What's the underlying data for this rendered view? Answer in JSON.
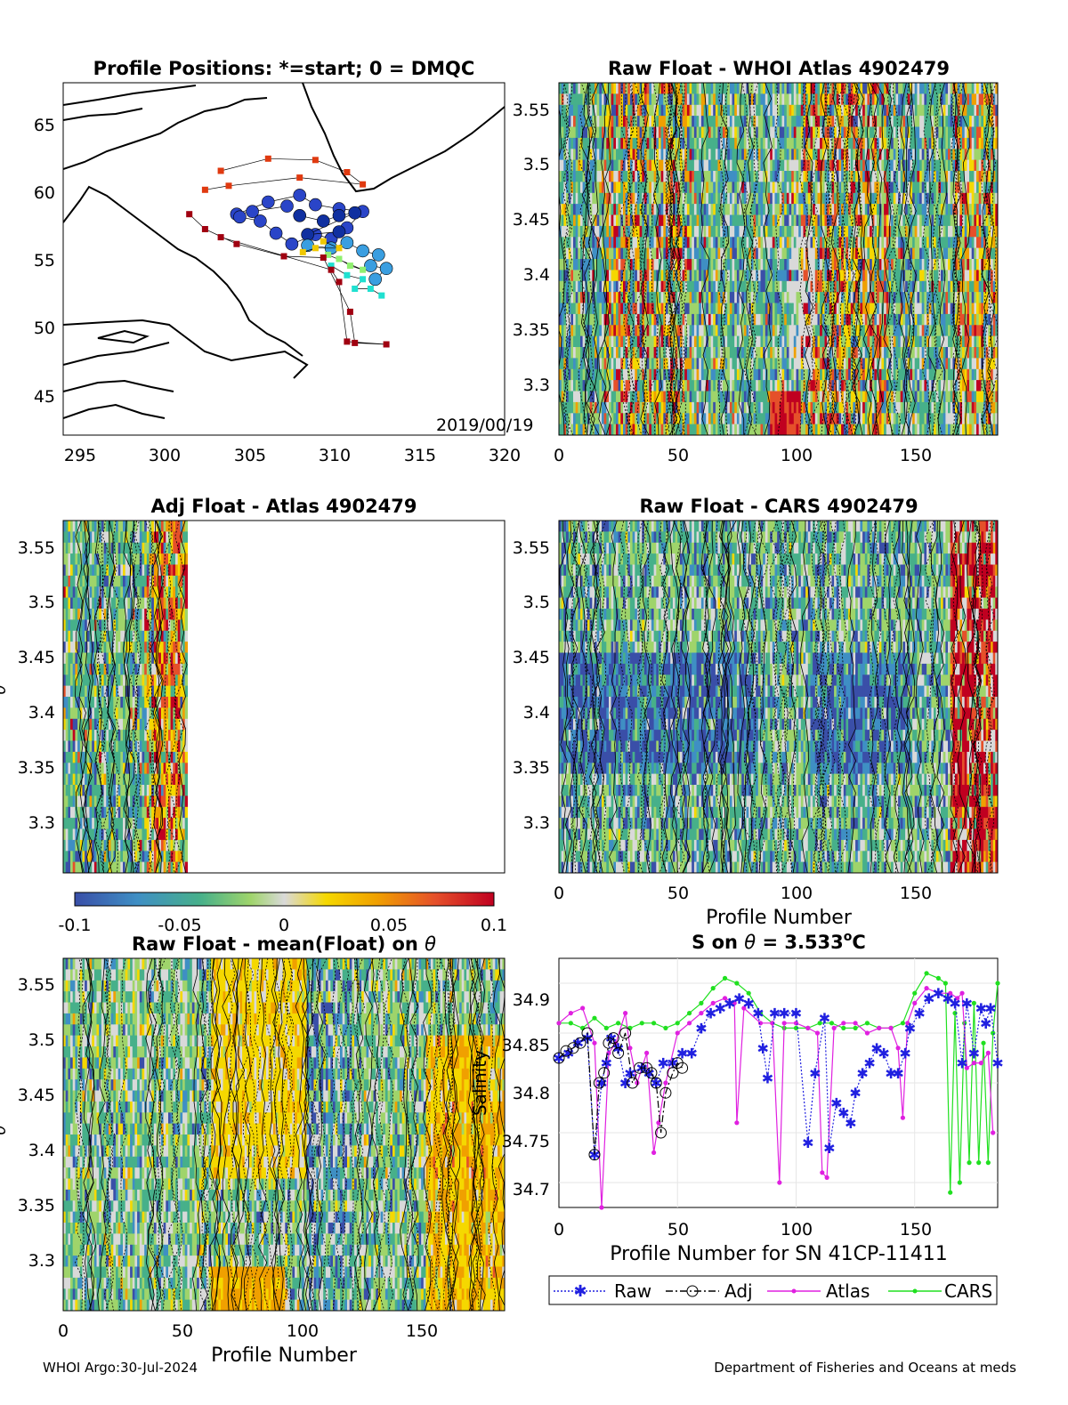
{
  "footer": {
    "left": "WHOI Argo:30-Jul-2024",
    "right": "Department of Fisheries and Oceans at meds"
  },
  "panels": {
    "map": {
      "title": "Profile Positions: *=start; 0 = DMQC",
      "date_label": "2019/00/19",
      "xticks": [
        "295",
        "300",
        "305",
        "310",
        "315",
        "320"
      ],
      "yticks": [
        "45",
        "50",
        "55",
        "60",
        "65"
      ]
    },
    "whoi": {
      "title": "Raw Float - WHOI Atlas  4902479",
      "xticks": [
        "0",
        "50",
        "100",
        "150"
      ],
      "yticks": [
        "3.3",
        "3.35",
        "3.4",
        "3.45",
        "3.5",
        "3.55"
      ]
    },
    "adj": {
      "title": "Adj Float - Atlas  4902479",
      "ylabel": "θ",
      "yticks": [
        "3.3",
        "3.35",
        "3.4",
        "3.45",
        "3.5",
        "3.55"
      ]
    },
    "cars": {
      "title": "Raw Float - CARS  4902479",
      "xlabel": "Profile Number",
      "xticks": [
        "0",
        "50",
        "100",
        "150"
      ],
      "yticks": [
        "3.3",
        "3.35",
        "3.4",
        "3.45",
        "3.5",
        "3.55"
      ]
    },
    "colorbar": {
      "ticks": [
        "-0.1",
        "-0.05",
        "0",
        "0.05",
        "0.1"
      ],
      "colors": [
        "#3a4fa8",
        "#3f8fc4",
        "#47b08a",
        "#9fd46b",
        "#d9d9d9",
        "#f5d800",
        "#f0a000",
        "#e5502a",
        "#c00020"
      ]
    },
    "mean": {
      "title_prefix": "Raw Float - mean(Float) on ",
      "title_sym": "θ",
      "ylabel": "θ",
      "xlabel": "Profile Number",
      "xticks": [
        "0",
        "50",
        "100",
        "150"
      ],
      "yticks": [
        "3.3",
        "3.35",
        "3.4",
        "3.45",
        "3.5",
        "3.55"
      ]
    },
    "sal": {
      "title_prefix": "S on ",
      "title_sym": "θ",
      "title_mid": " = 3.533",
      "title_sup": "o",
      "title_suffix": "C",
      "ylabel": "Salinity",
      "xlabel": "Profile Number for SN 41CP-11411",
      "xticks": [
        "0",
        "50",
        "100",
        "150"
      ],
      "yticks": [
        "34.7",
        "34.75",
        "34.8",
        "34.85",
        "34.9"
      ],
      "legend": [
        "Raw",
        "Adj",
        "Atlas",
        "CARS"
      ]
    }
  },
  "chart_data": [
    {
      "type": "scatter",
      "title": "Profile Positions: *=start; 0 = DMQC",
      "xlim": [
        293,
        321
      ],
      "ylim": [
        42,
        68
      ],
      "annotation": "2019/00/19",
      "series": [
        {
          "values": [
            [
              307.2,
              58.9
            ],
            [
              305,
              58.5
            ],
            [
              304,
              58.3
            ],
            [
              306,
              59.2
            ],
            [
              308,
              59.7
            ],
            [
              309,
              59
            ],
            [
              310.5,
              58.7
            ],
            [
              312,
              58.5
            ],
            [
              311,
              57.3
            ],
            [
              310,
              56.5
            ],
            [
              309,
              56.8
            ],
            [
              307.5,
              56.1
            ],
            [
              306.5,
              56.9
            ],
            [
              305.5,
              57.8
            ],
            [
              304.2,
              58.1
            ]
          ]
        },
        {
          "values": [
            [
              308,
              58.2
            ],
            [
              309.5,
              57.8
            ],
            [
              310.5,
              58.2
            ],
            [
              311.5,
              58.4
            ],
            [
              308.5,
              56.8
            ],
            [
              310.5,
              57
            ]
          ]
        },
        {
          "values": [
            [
              308.5,
              56
            ],
            [
              310,
              55.8
            ],
            [
              311,
              56.2
            ],
            [
              312,
              55.6
            ],
            [
              313,
              55.3
            ],
            [
              312.5,
              54.5
            ],
            [
              313.5,
              54.3
            ],
            [
              312.8,
              53.5
            ]
          ]
        },
        {
          "values": [
            [
              310,
              54.5
            ],
            [
              311,
              53.8
            ],
            [
              312,
              53.5
            ],
            [
              311.5,
              52.8
            ],
            [
              312.5,
              52.8
            ],
            [
              313.2,
              52.3
            ]
          ]
        },
        {
          "values": [
            [
              310.5,
              55
            ],
            [
              311.2,
              54.5
            ],
            [
              312,
              54.2
            ],
            [
              309.8,
              55.3
            ]
          ]
        },
        {
          "values": [
            [
              308.2,
              55.5
            ],
            [
              309,
              55.8
            ],
            [
              310.5,
              55.8
            ],
            [
              309.5,
              56.3
            ]
          ]
        },
        {
          "values": [
            [
              303,
              61.5
            ],
            [
              306,
              62.4
            ],
            [
              309,
              62.3
            ],
            [
              311,
              61.4
            ],
            [
              312,
              60.5
            ],
            [
              308,
              61
            ],
            [
              303.5,
              60.4
            ],
            [
              302,
              60.1
            ]
          ]
        },
        {
          "values": [
            [
              301,
              58.3
            ],
            [
              302,
              57.2
            ],
            [
              304,
              56.1
            ],
            [
              307,
              55.2
            ],
            [
              309.5,
              55.1
            ],
            [
              311.2,
              51.1
            ],
            [
              311.5,
              48.8
            ],
            [
              313.5,
              48.7
            ],
            [
              311,
              48.9
            ],
            [
              310.5,
              53.3
            ],
            [
              310,
              54.2
            ],
            [
              303,
              56.6
            ]
          ]
        }
      ]
    },
    {
      "type": "line",
      "title": "S on θ = 3.533°C",
      "xlabel": "Profile Number for SN 41CP-11411",
      "ylabel": "Salinity",
      "xlim": [
        0,
        185
      ],
      "ylim": [
        34.675,
        34.925
      ],
      "series": [
        {
          "name": "Raw",
          "values": [
            [
              0,
              34.825
            ],
            [
              4,
              34.83
            ],
            [
              8,
              34.84
            ],
            [
              12,
              34.845
            ],
            [
              15,
              34.728
            ],
            [
              18,
              34.8
            ],
            [
              20,
              34.82
            ],
            [
              22,
              34.845
            ],
            [
              25,
              34.835
            ],
            [
              28,
              34.8
            ],
            [
              30,
              34.81
            ],
            [
              35,
              34.815
            ],
            [
              38,
              34.81
            ],
            [
              41,
              34.8
            ],
            [
              44,
              34.82
            ],
            [
              48,
              34.82
            ],
            [
              52,
              34.83
            ],
            [
              56,
              34.83
            ],
            [
              60,
              34.855
            ],
            [
              64,
              34.87
            ],
            [
              68,
              34.875
            ],
            [
              72,
              34.88
            ],
            [
              76,
              34.885
            ],
            [
              80,
              34.88
            ],
            [
              84,
              34.87
            ],
            [
              86,
              34.835
            ],
            [
              88,
              34.805
            ],
            [
              91,
              34.87
            ],
            [
              95,
              34.87
            ],
            [
              100,
              34.87
            ],
            [
              105,
              34.74
            ],
            [
              108,
              34.81
            ],
            [
              112,
              34.865
            ],
            [
              114,
              34.735
            ],
            [
              117,
              34.78
            ],
            [
              120,
              34.77
            ],
            [
              123,
              34.76
            ],
            [
              125,
              34.79
            ],
            [
              128,
              34.81
            ],
            [
              131,
              34.82
            ],
            [
              134,
              34.835
            ],
            [
              137,
              34.83
            ],
            [
              140,
              34.81
            ],
            [
              143,
              34.81
            ],
            [
              146,
              34.83
            ],
            [
              148,
              34.855
            ],
            [
              152,
              34.87
            ],
            [
              156,
              34.885
            ],
            [
              160,
              34.89
            ],
            [
              164,
              34.885
            ],
            [
              167,
              34.88
            ],
            [
              170,
              34.82
            ],
            [
              172,
              34.88
            ],
            [
              175,
              34.83
            ],
            [
              178,
              34.875
            ],
            [
              180,
              34.86
            ],
            [
              182,
              34.875
            ],
            [
              185,
              34.82
            ]
          ]
        },
        {
          "name": "Adj",
          "values": [
            [
              0,
              34.825
            ],
            [
              3,
              34.832
            ],
            [
              6,
              34.835
            ],
            [
              9,
              34.84
            ],
            [
              12,
              34.85
            ],
            [
              15,
              34.728
            ],
            [
              17,
              34.8
            ],
            [
              19,
              34.81
            ],
            [
              21,
              34.84
            ],
            [
              23,
              34.845
            ],
            [
              25,
              34.83
            ],
            [
              28,
              34.85
            ],
            [
              31,
              34.8
            ],
            [
              34,
              34.815
            ],
            [
              37,
              34.815
            ],
            [
              39,
              34.81
            ],
            [
              41,
              34.8
            ],
            [
              43,
              34.75
            ],
            [
              45,
              34.79
            ],
            [
              48,
              34.81
            ],
            [
              50,
              34.82
            ],
            [
              52,
              34.815
            ]
          ]
        },
        {
          "name": "Atlas",
          "values": [
            [
              0,
              34.86
            ],
            [
              5,
              34.87
            ],
            [
              10,
              34.875
            ],
            [
              15,
              34.84
            ],
            [
              18,
              34.67
            ],
            [
              21,
              34.83
            ],
            [
              24,
              34.84
            ],
            [
              28,
              34.87
            ],
            [
              30,
              34.835
            ],
            [
              33,
              34.8
            ],
            [
              37,
              34.83
            ],
            [
              40,
              34.73
            ],
            [
              42,
              34.76
            ],
            [
              45,
              34.8
            ],
            [
              50,
              34.85
            ],
            [
              55,
              34.86
            ],
            [
              60,
              34.87
            ],
            [
              65,
              34.88
            ],
            [
              70,
              34.885
            ],
            [
              74,
              34.88
            ],
            [
              75,
              34.76
            ],
            [
              78,
              34.875
            ],
            [
              85,
              34.86
            ],
            [
              90,
              34.86
            ],
            [
              93,
              34.7
            ],
            [
              95,
              34.86
            ],
            [
              100,
              34.86
            ],
            [
              105,
              34.855
            ],
            [
              109,
              34.85
            ],
            [
              111,
              34.71
            ],
            [
              113,
              34.705
            ],
            [
              116,
              34.855
            ],
            [
              120,
              34.86
            ],
            [
              125,
              34.86
            ],
            [
              130,
              34.85
            ],
            [
              135,
              34.855
            ],
            [
              140,
              34.855
            ],
            [
              143,
              34.835
            ],
            [
              145,
              34.765
            ],
            [
              147,
              34.86
            ],
            [
              150,
              34.88
            ],
            [
              155,
              34.895
            ],
            [
              160,
              34.89
            ],
            [
              165,
              34.89
            ],
            [
              168,
              34.885
            ],
            [
              170,
              34.89
            ],
            [
              172,
              34.815
            ],
            [
              175,
              34.82
            ],
            [
              178,
              34.82
            ],
            [
              181,
              34.83
            ],
            [
              183,
              34.75
            ]
          ]
        },
        {
          "name": "CARS",
          "values": [
            [
              0,
              34.86
            ],
            [
              5,
              34.86
            ],
            [
              10,
              34.855
            ],
            [
              15,
              34.865
            ],
            [
              20,
              34.855
            ],
            [
              25,
              34.86
            ],
            [
              30,
              34.855
            ],
            [
              35,
              34.86
            ],
            [
              40,
              34.86
            ],
            [
              45,
              34.855
            ],
            [
              50,
              34.86
            ],
            [
              55,
              34.87
            ],
            [
              60,
              34.88
            ],
            [
              65,
              34.895
            ],
            [
              70,
              34.905
            ],
            [
              75,
              34.9
            ],
            [
              80,
              34.89
            ],
            [
              85,
              34.87
            ],
            [
              90,
              34.86
            ],
            [
              95,
              34.855
            ],
            [
              100,
              34.855
            ],
            [
              105,
              34.855
            ],
            [
              110,
              34.86
            ],
            [
              115,
              34.86
            ],
            [
              120,
              34.855
            ],
            [
              125,
              34.855
            ],
            [
              130,
              34.86
            ],
            [
              135,
              34.855
            ],
            [
              140,
              34.855
            ],
            [
              145,
              34.86
            ],
            [
              150,
              34.89
            ],
            [
              155,
              34.91
            ],
            [
              160,
              34.905
            ],
            [
              163,
              34.9
            ],
            [
              165,
              34.69
            ],
            [
              167,
              34.87
            ],
            [
              169,
              34.7
            ],
            [
              171,
              34.86
            ],
            [
              173,
              34.72
            ],
            [
              175,
              34.88
            ],
            [
              177,
              34.72
            ],
            [
              179,
              34.84
            ],
            [
              181,
              34.72
            ],
            [
              183,
              34.85
            ],
            [
              185,
              34.9
            ]
          ]
        }
      ]
    }
  ]
}
